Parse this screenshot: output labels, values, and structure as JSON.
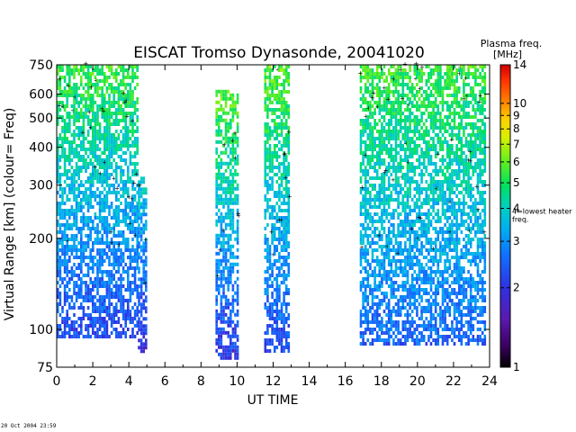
{
  "chart_data": {
    "type": "heatmap",
    "title": "EISCAT Tromso Dynasonde,  20041020",
    "xlabel": "UT TIME",
    "ylabel": "Virtual Range [km]   (colour= Freq)",
    "x_ticks": [
      "0",
      "2",
      "4",
      "6",
      "8",
      "10",
      "12",
      "14",
      "16",
      "18",
      "20",
      "22",
      "24"
    ],
    "xlim": [
      0,
      24
    ],
    "y_scale": "log",
    "y_ticks": [
      "75",
      "100",
      "200",
      "300",
      "400",
      "500",
      "600",
      "750"
    ],
    "ylim": [
      75,
      750
    ],
    "colorbar": {
      "title": "Plasma freq.",
      "unit": "[MHz]",
      "ticks": [
        "1",
        "2",
        "3",
        "4",
        "5",
        "6",
        "7",
        "8",
        "9",
        "10",
        "14"
      ],
      "annotation": "4=lowest heater freq.",
      "range": [
        1,
        14
      ]
    },
    "data_blocks": [
      {
        "x": [
          0.0,
          4.5
        ],
        "y_bottom": 95,
        "y_top": 750,
        "top_freq": 5.5,
        "bottom_freq": 2.2
      },
      {
        "x": [
          4.5,
          5.0
        ],
        "y_bottom": 85,
        "y_top": 320,
        "top_freq": 4.0,
        "bottom_freq": 1.9
      },
      {
        "x": [
          8.8,
          10.0
        ],
        "y_bottom": 80,
        "y_top": 620,
        "top_freq": 6.0,
        "bottom_freq": 2.0
      },
      {
        "x": [
          11.5,
          12.9
        ],
        "y_bottom": 85,
        "y_top": 750,
        "top_freq": 6.0,
        "bottom_freq": 2.2
      },
      {
        "x": [
          16.8,
          23.8
        ],
        "y_bottom": 90,
        "y_top": 750,
        "top_freq": 5.5,
        "bottom_freq": 2.5
      }
    ],
    "legend": "none",
    "grid": false
  },
  "timestamp": "20 Oct 2004 23:59"
}
